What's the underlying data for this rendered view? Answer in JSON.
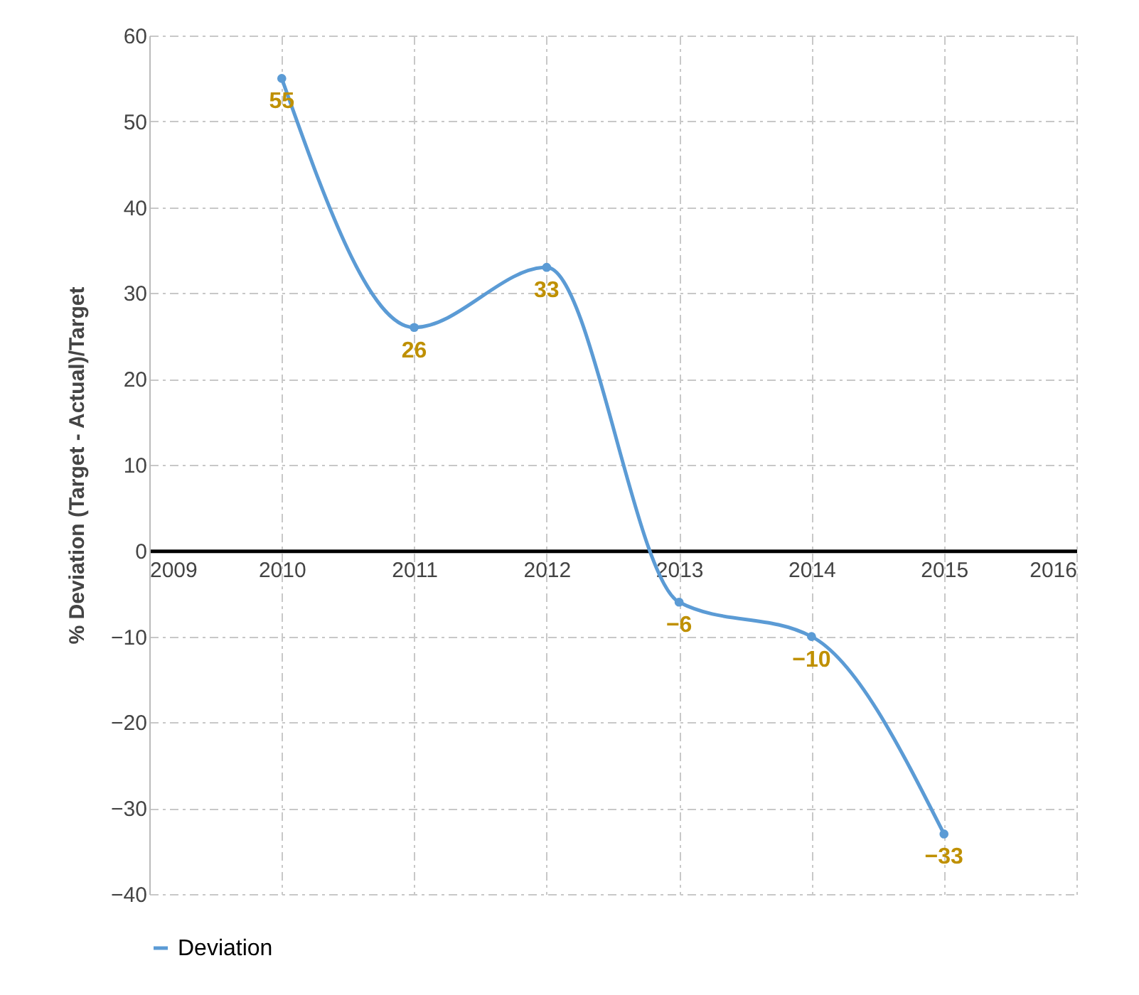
{
  "chart_data": {
    "type": "line",
    "ylabel": "% Deviation  (Target - Actual)/Target",
    "x": [
      2010,
      2011,
      2012,
      2013,
      2014,
      2015
    ],
    "series": [
      {
        "name": "Deviation",
        "color": "#5b9bd5",
        "values": [
          55,
          26,
          33,
          -6,
          -10,
          -33
        ]
      }
    ],
    "xlim": [
      2009,
      2016
    ],
    "xticks": [
      2009,
      2010,
      2011,
      2012,
      2013,
      2014,
      2015,
      2016
    ],
    "ylim": [
      -40,
      60
    ],
    "yticks": [
      -40,
      -30,
      -20,
      -10,
      0,
      10,
      20,
      30,
      40,
      50,
      60
    ],
    "grid": true,
    "legend": "bottom",
    "marker": "circle",
    "line_style": "solid",
    "data_labels": true
  }
}
